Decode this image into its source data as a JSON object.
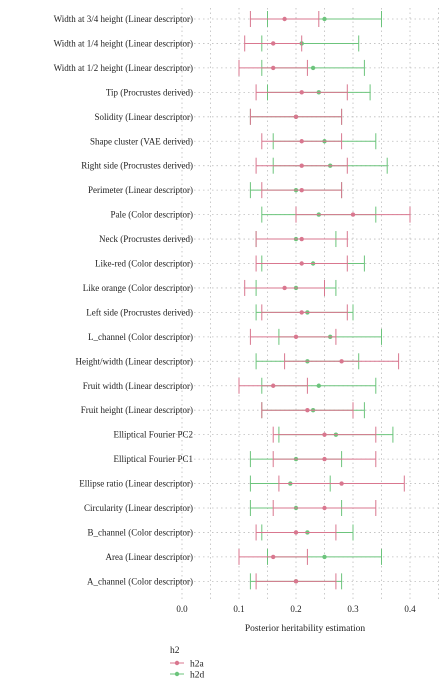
{
  "chart_data": {
    "type": "forest",
    "xlabel": "Posterior heritability estimation",
    "xlim": [
      -0.04,
      0.45
    ],
    "xticks": [
      0.0,
      0.1,
      0.2,
      0.3,
      0.4
    ],
    "xtick_labels": [
      "0.0",
      "0.1",
      "0.2",
      "0.3",
      "0.4"
    ],
    "grid": true,
    "legend_title": "h2",
    "legend_position": "bottom-left",
    "series": [
      {
        "name": "h2a",
        "color": "#d9778f"
      },
      {
        "name": "h2d",
        "color": "#6cc47c"
      }
    ],
    "traits": [
      {
        "label": "Width at 3/4 height (Linear descriptor)",
        "h2a": [
          0.12,
          0.18,
          0.24
        ],
        "h2d": [
          0.15,
          0.25,
          0.35
        ]
      },
      {
        "label": "Width at 1/4 height (Linear descriptor)",
        "h2a": [
          0.11,
          0.16,
          0.21
        ],
        "h2d": [
          0.14,
          0.21,
          0.31
        ]
      },
      {
        "label": "Width at 1/2 height (Linear descriptor)",
        "h2a": [
          0.1,
          0.16,
          0.22
        ],
        "h2d": [
          0.14,
          0.23,
          0.32
        ]
      },
      {
        "label": "Tip (Procrustes derived)",
        "h2a": [
          0.13,
          0.21,
          0.29
        ],
        "h2d": [
          0.15,
          0.24,
          0.33
        ]
      },
      {
        "label": "Solidity (Linear descriptor)",
        "h2a": [
          0.12,
          0.2,
          0.28
        ],
        "h2d": [
          0.12,
          0.2,
          0.28
        ]
      },
      {
        "label": "Shape cluster (VAE derived)",
        "h2a": [
          0.14,
          0.21,
          0.28
        ],
        "h2d": [
          0.16,
          0.25,
          0.34
        ]
      },
      {
        "label": "Right side (Procrustes derived)",
        "h2a": [
          0.13,
          0.21,
          0.29
        ],
        "h2d": [
          0.16,
          0.26,
          0.36
        ]
      },
      {
        "label": "Perimeter (Linear descriptor)",
        "h2a": [
          0.14,
          0.21,
          0.28
        ],
        "h2d": [
          0.12,
          0.2,
          0.28
        ]
      },
      {
        "label": "Pale (Color descriptor)",
        "h2a": [
          0.2,
          0.3,
          0.4
        ],
        "h2d": [
          0.14,
          0.24,
          0.34
        ]
      },
      {
        "label": "Neck (Procrustes derived)",
        "h2a": [
          0.13,
          0.21,
          0.29
        ],
        "h2d": [
          0.13,
          0.2,
          0.27
        ]
      },
      {
        "label": "Like-red (Color descriptor)",
        "h2a": [
          0.13,
          0.21,
          0.29
        ],
        "h2d": [
          0.14,
          0.23,
          0.32
        ]
      },
      {
        "label": "Like orange (Color descriptor)",
        "h2a": [
          0.11,
          0.18,
          0.25
        ],
        "h2d": [
          0.13,
          0.2,
          0.27
        ]
      },
      {
        "label": "Left side (Procrustes derived)",
        "h2a": [
          0.14,
          0.21,
          0.29
        ],
        "h2d": [
          0.13,
          0.22,
          0.3
        ]
      },
      {
        "label": "L_channel (Color descriptor)",
        "h2a": [
          0.12,
          0.2,
          0.27
        ],
        "h2d": [
          0.17,
          0.26,
          0.35
        ]
      },
      {
        "label": "Height/width (Linear descriptor)",
        "h2a": [
          0.18,
          0.28,
          0.38
        ],
        "h2d": [
          0.13,
          0.22,
          0.31
        ]
      },
      {
        "label": "Fruit width (Linear descriptor)",
        "h2a": [
          0.1,
          0.16,
          0.22
        ],
        "h2d": [
          0.14,
          0.24,
          0.34
        ]
      },
      {
        "label": "Fruit height (Linear descriptor)",
        "h2a": [
          0.14,
          0.22,
          0.3
        ],
        "h2d": [
          0.14,
          0.23,
          0.32
        ]
      },
      {
        "label": "Elliptical Fourier PC2",
        "h2a": [
          0.16,
          0.25,
          0.34
        ],
        "h2d": [
          0.17,
          0.27,
          0.37
        ]
      },
      {
        "label": "Elliptical Fourier PC1",
        "h2a": [
          0.16,
          0.25,
          0.34
        ],
        "h2d": [
          0.12,
          0.2,
          0.28
        ]
      },
      {
        "label": "Ellipse ratio (Linear descriptor)",
        "h2a": [
          0.17,
          0.28,
          0.39
        ],
        "h2d": [
          0.12,
          0.19,
          0.26
        ]
      },
      {
        "label": "Circularity (Linear descriptor)",
        "h2a": [
          0.16,
          0.25,
          0.34
        ],
        "h2d": [
          0.12,
          0.2,
          0.28
        ]
      },
      {
        "label": "B_channel (Color descriptor)",
        "h2a": [
          0.13,
          0.2,
          0.27
        ],
        "h2d": [
          0.14,
          0.22,
          0.3
        ]
      },
      {
        "label": "Area (Linear descriptor)",
        "h2a": [
          0.1,
          0.16,
          0.22
        ],
        "h2d": [
          0.15,
          0.25,
          0.35
        ]
      },
      {
        "label": "A_channel (Color descriptor)",
        "h2a": [
          0.13,
          0.2,
          0.27
        ],
        "h2d": [
          0.12,
          0.2,
          0.28
        ]
      }
    ]
  }
}
